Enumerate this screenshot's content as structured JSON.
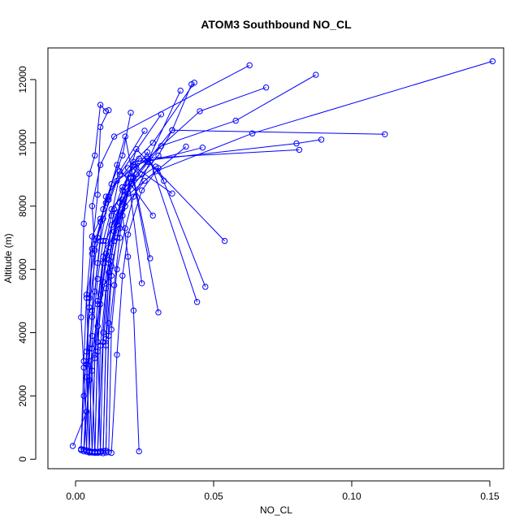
{
  "chart_data": {
    "type": "line",
    "title": "ATOM3 Southbound NO_CL",
    "xlabel": "NO_CL",
    "ylabel": "Altitude (m)",
    "xlim": [
      -0.01,
      0.155
    ],
    "ylim": [
      -300,
      13000
    ],
    "x_ticks": [
      0.0,
      0.05,
      0.1,
      0.15
    ],
    "x_tick_labels": [
      "0.00",
      "0.05",
      "0.10",
      "0.15"
    ],
    "y_ticks": [
      0,
      2000,
      4000,
      6000,
      8000,
      10000,
      12000
    ],
    "y_tick_labels": [
      "0",
      "2000",
      "4000",
      "6000",
      "8000",
      "10000",
      "12000"
    ],
    "series_color": "#0000ff",
    "marker": "open-circle",
    "grid": false,
    "series": [
      {
        "x": [
          -0.001,
          0.004,
          0.006,
          0.012,
          0.016,
          0.024,
          0.03,
          0.035,
          0.042
        ],
        "y": [
          420,
          1500,
          3500,
          6200,
          8100,
          9000,
          9600,
          10400,
          11850
        ]
      },
      {
        "x": [
          0.002,
          0.003,
          0.005,
          0.008,
          0.011,
          0.019,
          0.028,
          0.043
        ],
        "y": [
          320,
          2000,
          4800,
          7000,
          8300,
          9200,
          10000,
          11900
        ]
      },
      {
        "x": [
          0.003,
          0.005,
          0.004,
          0.007,
          0.006,
          0.009,
          0.014,
          0.063
        ],
        "y": [
          250,
          2500,
          5100,
          6600,
          8000,
          9300,
          10200,
          12450
        ]
      },
      {
        "x": [
          0.005,
          0.004,
          0.006,
          0.01,
          0.015,
          0.026,
          0.045,
          0.069
        ],
        "y": [
          210,
          3000,
          6500,
          7600,
          8800,
          9500,
          11000,
          11750
        ]
      },
      {
        "x": [
          0.006,
          0.007,
          0.009,
          0.013,
          0.02,
          0.031,
          0.058,
          0.087
        ],
        "y": [
          220,
          3200,
          5200,
          7400,
          8700,
          9900,
          10700,
          12150
        ]
      },
      {
        "x": [
          0.007,
          0.006,
          0.008,
          0.011,
          0.017,
          0.029,
          0.064,
          0.151
        ],
        "y": [
          200,
          2800,
          4900,
          6900,
          8200,
          9100,
          10300,
          12580
        ]
      },
      {
        "x": [
          0.008,
          0.01,
          0.012,
          0.015,
          0.022,
          0.035,
          0.112
        ],
        "y": [
          230,
          4000,
          6300,
          7800,
          9000,
          10400,
          10270
        ]
      },
      {
        "x": [
          0.01,
          0.011,
          0.013,
          0.016,
          0.019,
          0.021,
          0.08,
          0.089
        ],
        "y": [
          190,
          3600,
          6100,
          7300,
          8400,
          9400,
          9980,
          10100
        ]
      },
      {
        "x": [
          0.011,
          0.012,
          0.014,
          0.016,
          0.018,
          0.022,
          0.054
        ],
        "y": [
          270,
          3900,
          5500,
          7000,
          8600,
          9800,
          6900
        ]
      },
      {
        "x": [
          0.013,
          0.015,
          0.017,
          0.019,
          0.024,
          0.03,
          0.047
        ],
        "y": [
          200,
          3300,
          5800,
          7100,
          8500,
          9200,
          5450
        ]
      },
      {
        "x": [
          0.023,
          0.021,
          0.019,
          0.017,
          0.02,
          0.026,
          0.044
        ],
        "y": [
          250,
          4700,
          6400,
          7700,
          8900,
          9700,
          4970
        ]
      },
      {
        "x": [
          0.004,
          0.003,
          0.002,
          0.003,
          0.005,
          0.007,
          0.009,
          0.011
        ],
        "y": [
          280,
          2900,
          4480,
          7440,
          9020,
          9600,
          11200,
          11000
        ]
      },
      {
        "x": [
          0.005,
          0.004,
          0.005,
          0.006,
          0.008,
          0.009,
          0.012
        ],
        "y": [
          260,
          3400,
          5100,
          6650,
          8360,
          10500,
          11030
        ]
      },
      {
        "x": [
          0.006,
          0.005,
          0.006,
          0.007,
          0.009,
          0.011,
          0.018,
          0.03
        ],
        "y": [
          230,
          3100,
          4700,
          6800,
          7500,
          8100,
          10200,
          4640
        ]
      },
      {
        "x": [
          0.007,
          0.008,
          0.01,
          0.012,
          0.014,
          0.017,
          0.021,
          0.046
        ],
        "y": [
          240,
          3700,
          5600,
          6700,
          7900,
          8600,
          9300,
          9850
        ]
      },
      {
        "x": [
          0.009,
          0.008,
          0.01,
          0.014,
          0.018,
          0.025,
          0.04
        ],
        "y": [
          210,
          4200,
          6200,
          7200,
          8000,
          8800,
          9880
        ]
      },
      {
        "x": [
          0.01,
          0.011,
          0.012,
          0.015,
          0.019,
          0.023,
          0.081
        ],
        "y": [
          260,
          3800,
          5900,
          7500,
          8400,
          9500,
          9780
        ]
      },
      {
        "x": [
          0.012,
          0.013,
          0.015,
          0.018,
          0.021,
          0.027,
          0.032
        ],
        "y": [
          220,
          4100,
          6000,
          7300,
          8300,
          9400,
          8800
        ]
      },
      {
        "x": [
          0.003,
          0.004,
          0.006,
          0.008,
          0.01,
          0.013,
          0.017,
          0.02
        ],
        "y": [
          300,
          2600,
          4500,
          6200,
          7900,
          8700,
          9600,
          10950
        ]
      },
      {
        "x": [
          0.004,
          0.005,
          0.007,
          0.009,
          0.012,
          0.016,
          0.025
        ],
        "y": [
          240,
          3500,
          5300,
          6900,
          8200,
          9100,
          10380
        ]
      },
      {
        "x": [
          0.006,
          0.007,
          0.008,
          0.01,
          0.013,
          0.016,
          0.031
        ],
        "y": [
          210,
          3300,
          5000,
          6400,
          7700,
          9000,
          10900
        ]
      },
      {
        "x": [
          0.008,
          0.009,
          0.011,
          0.014,
          0.017,
          0.026,
          0.038
        ],
        "y": [
          200,
          3600,
          5400,
          6900,
          8500,
          9400,
          11650
        ]
      },
      {
        "x": [
          0.002,
          0.003,
          0.004,
          0.006,
          0.009,
          0.012,
          0.015,
          0.028
        ],
        "y": [
          290,
          3100,
          5200,
          7040,
          7600,
          8300,
          9300,
          7700
        ]
      },
      {
        "x": [
          0.005,
          0.006,
          0.008,
          0.01,
          0.013,
          0.02,
          0.029
        ],
        "y": [
          230,
          3900,
          5700,
          6900,
          7900,
          8700,
          9250
        ]
      },
      {
        "x": [
          0.007,
          0.008,
          0.009,
          0.011,
          0.015,
          0.022,
          0.035
        ],
        "y": [
          220,
          3400,
          4900,
          6500,
          7400,
          9200,
          8400
        ]
      },
      {
        "x": [
          0.009,
          0.01,
          0.012,
          0.013,
          0.016,
          0.019,
          0.024
        ],
        "y": [
          250,
          3700,
          5600,
          6400,
          8100,
          9000,
          5560
        ]
      },
      {
        "x": [
          0.011,
          0.012,
          0.013,
          0.015,
          0.017,
          0.021,
          0.027
        ],
        "y": [
          210,
          4300,
          5800,
          7000,
          7900,
          8900,
          6350
        ]
      }
    ]
  }
}
